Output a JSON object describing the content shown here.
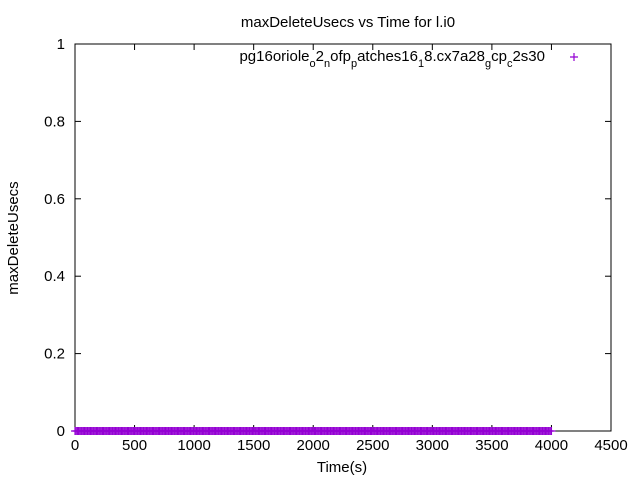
{
  "chart_data": {
    "type": "scatter",
    "title": "maxDeleteUsecs vs Time for l.i0",
    "xlabel": "Time(s)",
    "ylabel": "maxDeleteUsecs",
    "xlim": [
      0,
      4500
    ],
    "ylim": [
      0,
      1
    ],
    "x_ticks": [
      "0",
      "500",
      "1000",
      "1500",
      "2000",
      "2500",
      "3000",
      "3500",
      "4000",
      "4500"
    ],
    "y_ticks": [
      "0",
      "0.2",
      "0.4",
      "0.6",
      "0.8",
      "1"
    ],
    "legend_position": "top-right",
    "marker": "+",
    "grid": false,
    "series": [
      {
        "legend_parts": [
          {
            "t": "pg16oriole",
            "sub": false
          },
          {
            "t": "o",
            "sub": true
          },
          {
            "t": "2",
            "sub": false
          },
          {
            "t": "n",
            "sub": true
          },
          {
            "t": "ofp",
            "sub": false
          },
          {
            "t": "p",
            "sub": true
          },
          {
            "t": "atches16",
            "sub": false
          },
          {
            "t": "1",
            "sub": true
          },
          {
            "t": "8.cx7a28",
            "sub": false
          },
          {
            "t": "g",
            "sub": true
          },
          {
            "t": "cp",
            "sub": false
          },
          {
            "t": "c",
            "sub": true
          },
          {
            "t": "2s30",
            "sub": false
          }
        ],
        "color": "#9400d3",
        "x_range": [
          0,
          4000
        ],
        "x_step": 10,
        "y_value": 0
      }
    ]
  }
}
